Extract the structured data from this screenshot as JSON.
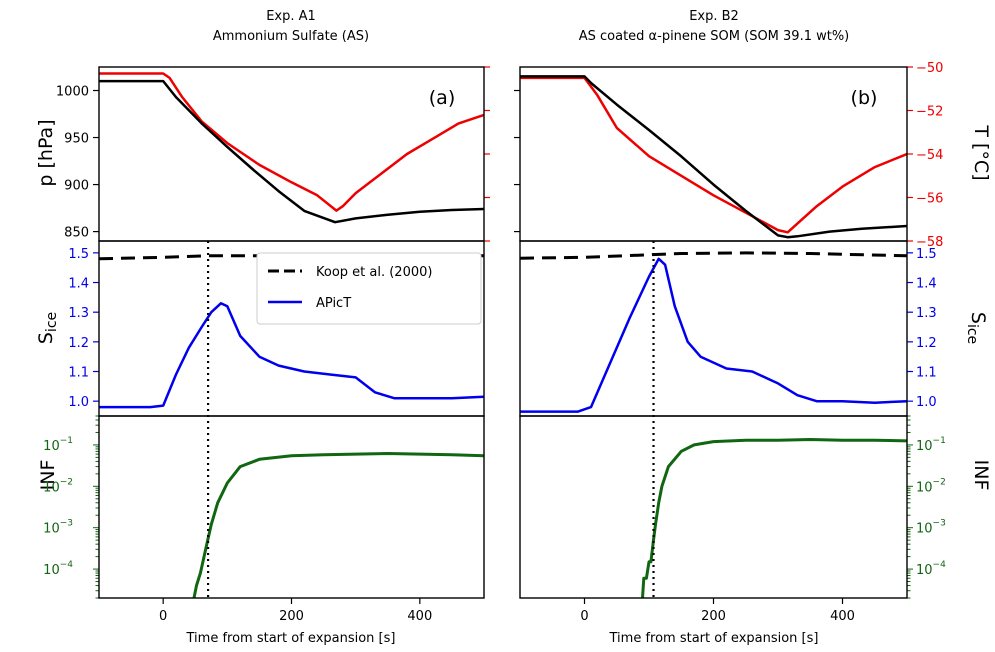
{
  "colors": {
    "pressure": "#000000",
    "temperature": "#ee0000",
    "sice": "#0000ee",
    "koop": "#000000",
    "inf": "#116611"
  },
  "chart_data": {
    "type": "line",
    "xlabel": "Time from start of expansion [s]",
    "xlim": [
      -100,
      500
    ],
    "xticks": [
      "0",
      "200",
      "400"
    ],
    "pressure_axis": {
      "label": "p [hPa]",
      "ylim": [
        840,
        1025
      ],
      "ticks": [
        "850",
        "900",
        "950",
        "1000"
      ]
    },
    "temperature_axis": {
      "label": "T [°C]",
      "ylim": [
        -58,
        -50
      ],
      "ticks": [
        "−58",
        "−56",
        "−54",
        "−52",
        "−50"
      ]
    },
    "sice_axis": {
      "label_main": "S",
      "label_sub": "ice",
      "ylim": [
        0.95,
        1.54
      ],
      "ticks": [
        "1.0",
        "1.1",
        "1.2",
        "1.3",
        "1.4",
        "1.5"
      ]
    },
    "inf_axis": {
      "label": "INF",
      "scale": "log",
      "ylim": [
        2e-05,
        0.5
      ],
      "ticks": [
        [
          "10",
          "−4"
        ],
        [
          "10",
          "−3"
        ],
        [
          "10",
          "−2"
        ],
        [
          "10",
          "−1"
        ]
      ]
    },
    "legend": {
      "placement": "upper-right of left middle panel",
      "entries": [
        {
          "key": "koop",
          "label": "Koop et al. (2000)",
          "style": "dashed"
        },
        {
          "key": "apict",
          "label": "APicT",
          "style": "solid"
        }
      ]
    },
    "panels": [
      {
        "id": "a",
        "label": "(a)",
        "title_line1": "Exp. A1",
        "title_line2": "Ammonium Sulfate (AS)",
        "dotted_x": 70,
        "pressure": {
          "x": [
            -100,
            0,
            20,
            60,
            100,
            140,
            180,
            220,
            268,
            300,
            350,
            400,
            450,
            500
          ],
          "y": [
            1010,
            1010,
            993,
            965,
            940,
            916,
            893,
            872,
            860,
            864,
            868,
            871,
            873,
            874
          ]
        },
        "temperature": {
          "x": [
            -100,
            0,
            10,
            30,
            60,
            100,
            150,
            200,
            240,
            270,
            280,
            300,
            340,
            380,
            420,
            460,
            500
          ],
          "y": [
            -50.3,
            -50.3,
            -50.5,
            -51.4,
            -52.5,
            -53.5,
            -54.5,
            -55.3,
            -55.9,
            -56.6,
            -56.4,
            -55.8,
            -54.9,
            -54.0,
            -53.3,
            -52.6,
            -52.2
          ]
        },
        "sice": {
          "x": [
            -100,
            -20,
            0,
            20,
            40,
            60,
            75,
            90,
            100,
            120,
            150,
            180,
            220,
            260,
            300,
            330,
            360,
            400,
            450,
            500
          ],
          "y": [
            0.98,
            0.98,
            0.985,
            1.09,
            1.18,
            1.25,
            1.3,
            1.33,
            1.32,
            1.22,
            1.15,
            1.12,
            1.1,
            1.09,
            1.08,
            1.03,
            1.01,
            1.01,
            1.01,
            1.015
          ]
        },
        "koop": {
          "x": [
            -100,
            0,
            70,
            150,
            250,
            300,
            400,
            500
          ],
          "y": [
            1.48,
            1.485,
            1.49,
            1.49,
            1.49,
            1.488,
            1.49,
            1.49
          ]
        },
        "inf": {
          "x": [
            40,
            42,
            48,
            52,
            58,
            62,
            68,
            75,
            85,
            100,
            120,
            150,
            200,
            250,
            300,
            350,
            400,
            450,
            500
          ],
          "y": [
            2e-05,
            1e-05,
            2e-05,
            4e-05,
            8e-05,
            0.00015,
            0.0004,
            0.0012,
            0.004,
            0.012,
            0.03,
            0.045,
            0.055,
            0.058,
            0.06,
            0.062,
            0.06,
            0.058,
            0.055
          ]
        }
      },
      {
        "id": "b",
        "label": "(b)",
        "title_line1": "Exp. B2",
        "title_line2": "AS coated α-pinene SOM (SOM 39.1 wt%)",
        "dotted_x": 107,
        "pressure": {
          "x": [
            -100,
            0,
            10,
            50,
            100,
            150,
            200,
            250,
            300,
            315,
            330,
            380,
            430,
            500
          ],
          "y": [
            1015,
            1015,
            1008,
            985,
            958,
            930,
            900,
            872,
            846,
            844,
            845,
            850,
            853,
            856
          ]
        },
        "temperature": {
          "x": [
            -100,
            0,
            20,
            50,
            100,
            150,
            200,
            250,
            300,
            315,
            330,
            360,
            400,
            450,
            500
          ],
          "y": [
            -50.5,
            -50.5,
            -51.3,
            -52.8,
            -54.1,
            -55.0,
            -55.9,
            -56.7,
            -57.5,
            -57.6,
            -57.2,
            -56.4,
            -55.5,
            -54.6,
            -54.0
          ]
        },
        "sice": {
          "x": [
            -100,
            -10,
            10,
            40,
            70,
            100,
            115,
            125,
            140,
            160,
            180,
            220,
            260,
            300,
            330,
            360,
            400,
            450,
            500
          ],
          "y": [
            0.965,
            0.965,
            0.98,
            1.13,
            1.28,
            1.42,
            1.48,
            1.46,
            1.32,
            1.2,
            1.15,
            1.11,
            1.1,
            1.06,
            1.02,
            1.0,
            1.0,
            0.995,
            1.0
          ]
        },
        "koop": {
          "x": [
            -100,
            0,
            60,
            150,
            250,
            350,
            500
          ],
          "y": [
            1.482,
            1.485,
            1.49,
            1.498,
            1.5,
            1.498,
            1.49
          ]
        },
        "inf": {
          "x": [
            90,
            92,
            96,
            100,
            103,
            107,
            110,
            115,
            120,
            130,
            150,
            170,
            200,
            250,
            300,
            350,
            400,
            450,
            500
          ],
          "y": [
            2e-05,
            6e-05,
            6e-05,
            0.00015,
            0.00015,
            0.0005,
            0.0012,
            0.004,
            0.01,
            0.03,
            0.07,
            0.1,
            0.12,
            0.13,
            0.13,
            0.135,
            0.13,
            0.13,
            0.125
          ]
        }
      }
    ]
  }
}
